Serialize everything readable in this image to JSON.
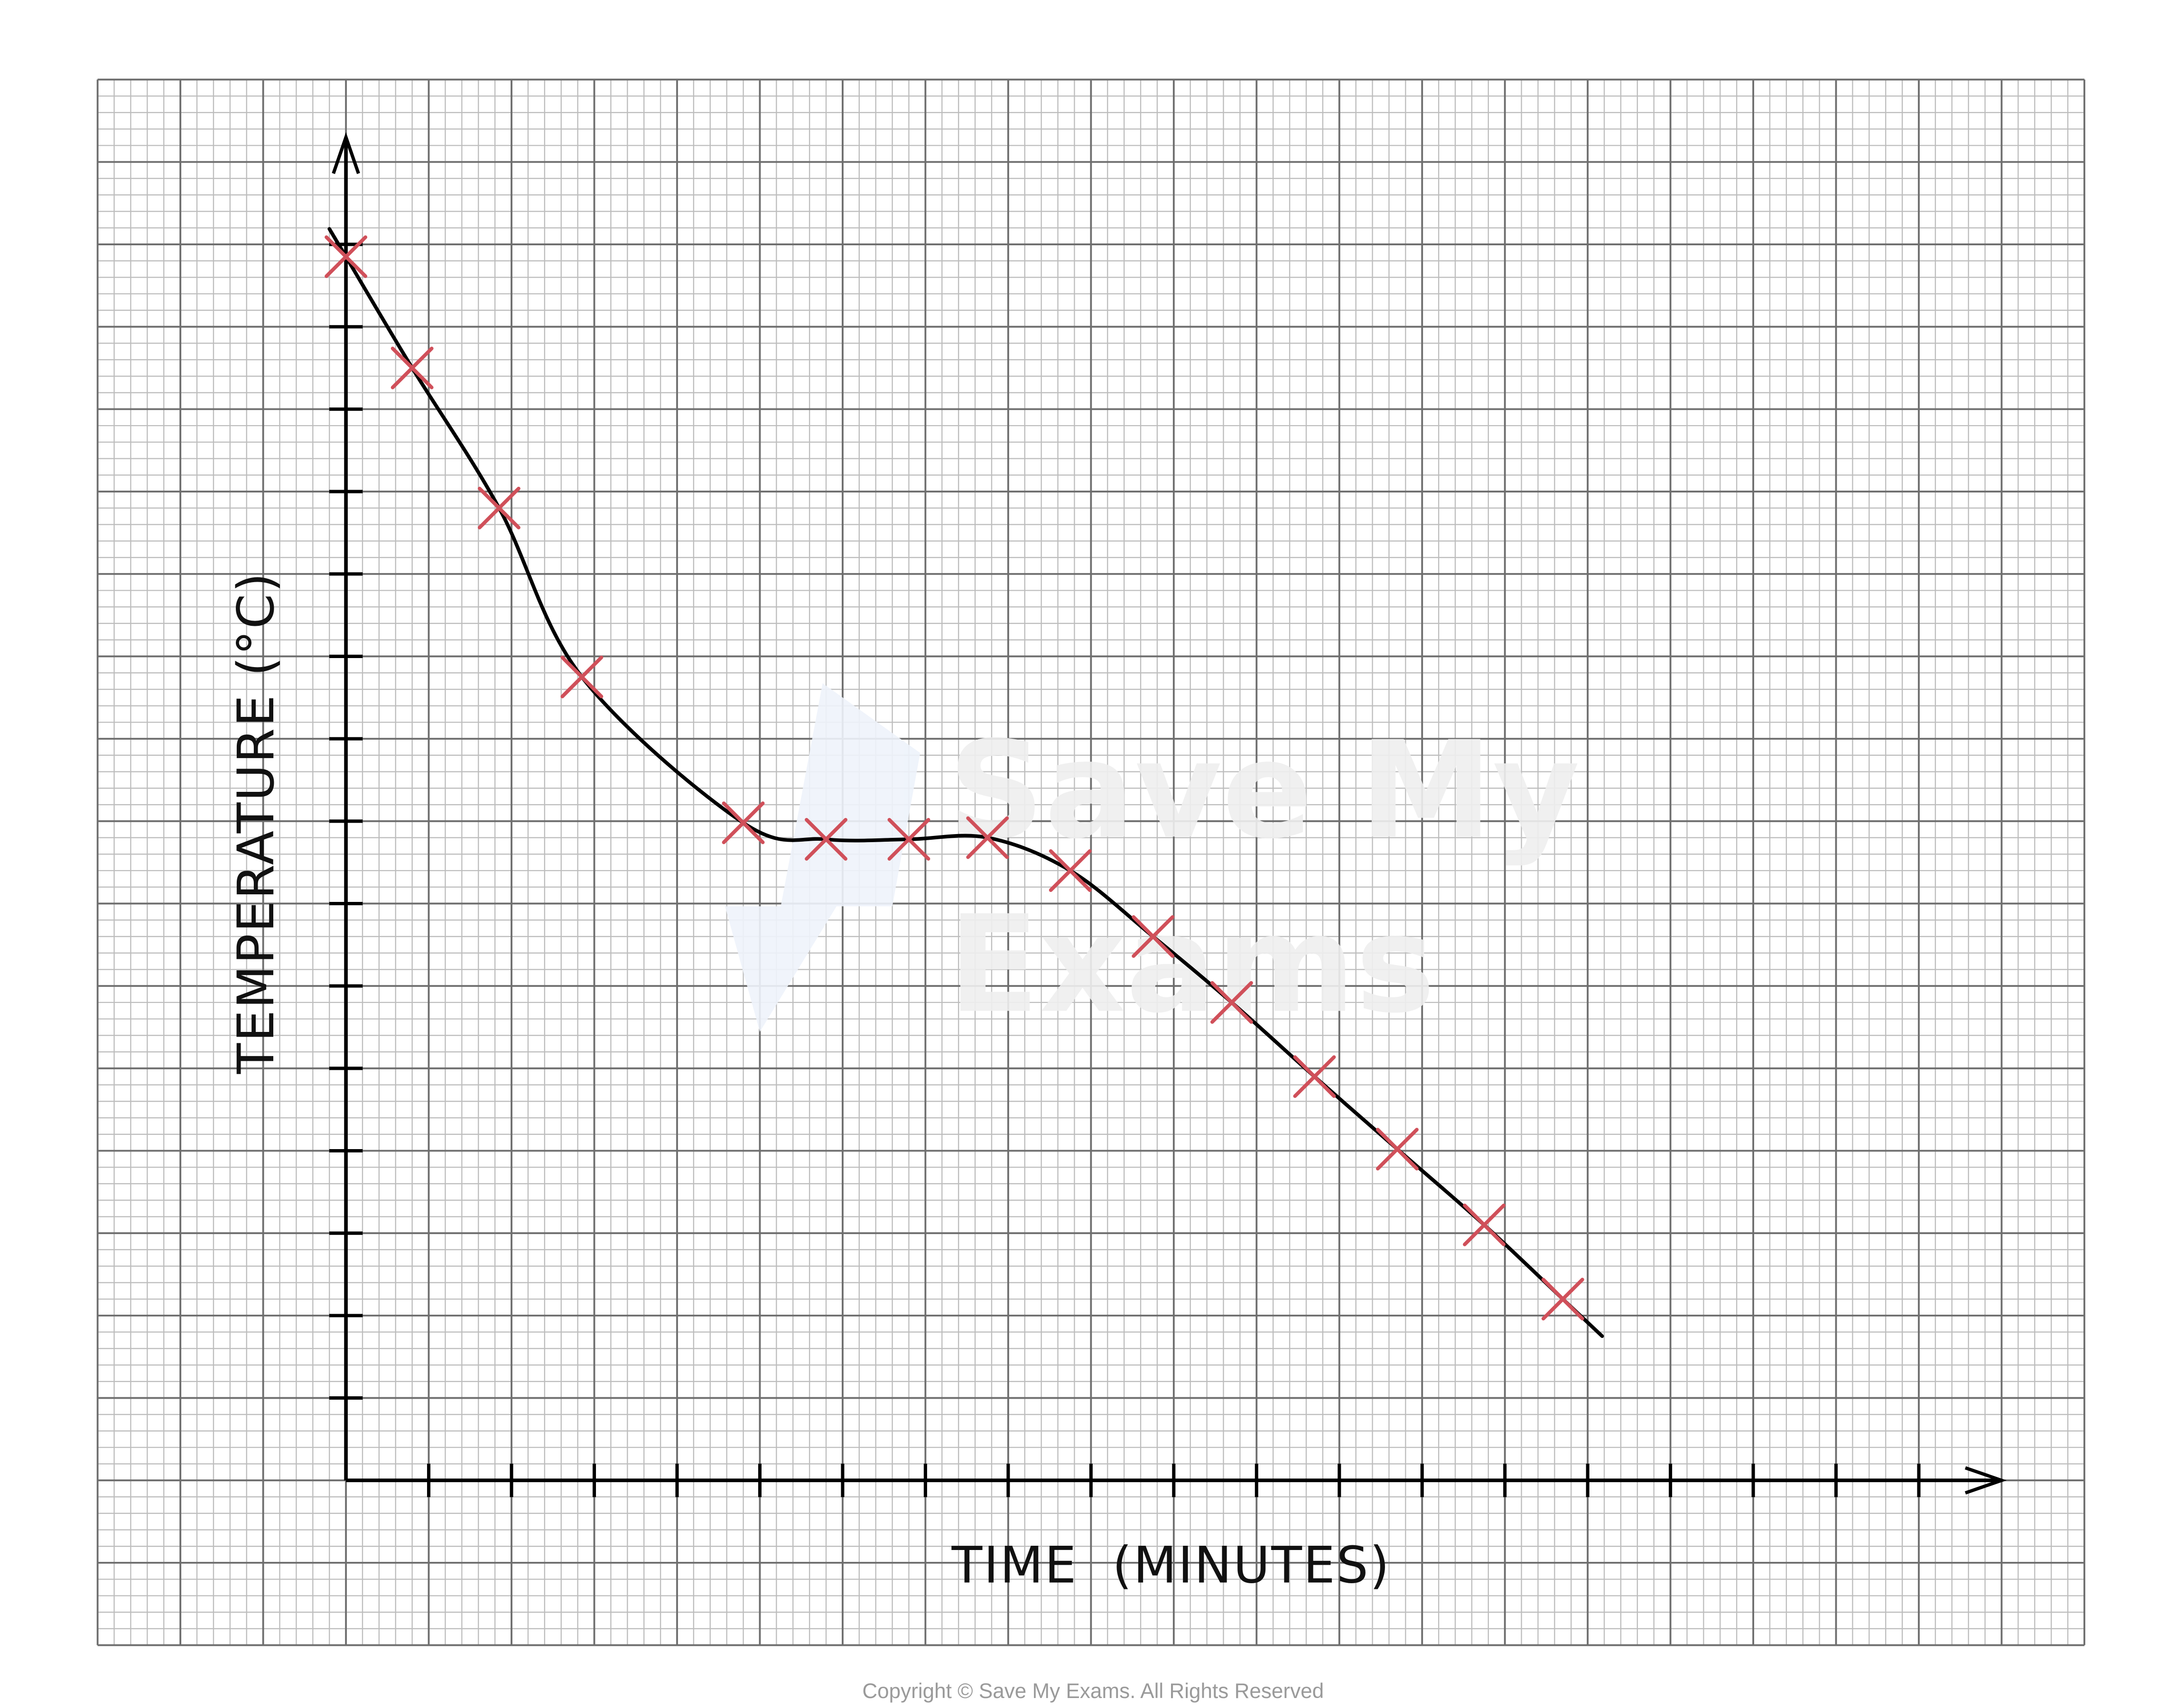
{
  "chart_data": {
    "type": "scatter",
    "title": "",
    "xlabel": "TIME  (MINUTES)",
    "ylabel": "TEMPERATURE (°C)",
    "x_tick_count": 19,
    "y_tick_count": 15,
    "tick_labels": "none",
    "grid": true,
    "marker": "cross",
    "best_fit": "smooth curve",
    "colors": {
      "points": "#d0505a",
      "curve": "#000000",
      "grid_major": "#6e6e6e",
      "grid_minor": "#bdbdbd"
    },
    "points": [
      {
        "x": 0.0,
        "y": 14.85
      },
      {
        "x": 0.8,
        "y": 13.5
      },
      {
        "x": 1.85,
        "y": 11.8
      },
      {
        "x": 2.85,
        "y": 9.75
      },
      {
        "x": 4.8,
        "y": 7.98
      },
      {
        "x": 5.8,
        "y": 7.78
      },
      {
        "x": 6.8,
        "y": 7.78
      },
      {
        "x": 7.75,
        "y": 7.8
      },
      {
        "x": 8.75,
        "y": 7.4
      },
      {
        "x": 9.75,
        "y": 6.6
      },
      {
        "x": 10.7,
        "y": 5.8
      },
      {
        "x": 11.7,
        "y": 4.9
      },
      {
        "x": 12.7,
        "y": 4.02
      },
      {
        "x": 13.75,
        "y": 3.1
      },
      {
        "x": 14.7,
        "y": 2.2
      }
    ]
  },
  "watermark": {
    "line1": "Save My",
    "line2": "Exams"
  },
  "footer": {
    "copyright": "Copyright © Save My Exams. All Rights Reserved"
  }
}
